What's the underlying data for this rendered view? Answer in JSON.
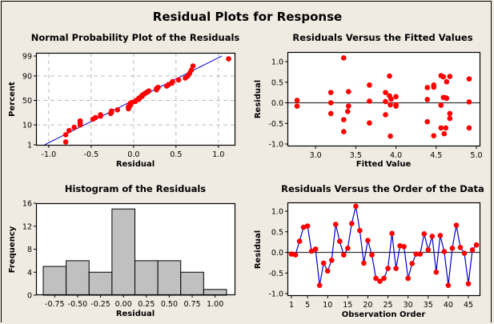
{
  "title": "Residual Plots for Response",
  "chart_data": [
    {
      "id": "normal",
      "type": "scatter",
      "title": "Normal Probability Plot of the Residuals",
      "xlabel": "Residual",
      "ylabel": "Percent",
      "xlim": [
        -1.15,
        1.2
      ],
      "ylim_percent": [
        1,
        99
      ],
      "xticks": [
        -1.0,
        -0.5,
        0.0,
        0.5,
        1.0
      ],
      "xtick_labels": [
        "-1.0",
        "-0.5",
        "0.0",
        "0.5",
        "1.0"
      ],
      "yticks": [
        1,
        10,
        50,
        90,
        99
      ],
      "ytick_labels": [
        "1",
        "10",
        "50",
        "90",
        "99"
      ],
      "grid": true,
      "fit_line": {
        "x_at_1pct": -1.05,
        "x_at_99pct": 1.04,
        "color": "#0000cc"
      },
      "point_color": "#ff0000",
      "residuals_sorted": [
        -0.8,
        -0.8,
        -0.76,
        -0.7,
        -0.63,
        -0.63,
        -0.63,
        -0.48,
        -0.45,
        -0.39,
        -0.39,
        -0.27,
        -0.26,
        -0.26,
        -0.19,
        -0.06,
        -0.06,
        -0.06,
        -0.04,
        -0.04,
        -0.04,
        -0.02,
        0.02,
        0.03,
        0.06,
        0.06,
        0.08,
        0.1,
        0.1,
        0.12,
        0.14,
        0.16,
        0.18,
        0.27,
        0.27,
        0.29,
        0.39,
        0.41,
        0.45,
        0.46,
        0.53,
        0.61,
        0.64,
        0.66,
        0.68,
        0.7,
        1.12
      ]
    },
    {
      "id": "fitted",
      "type": "scatter",
      "title": "Residuals Versus the Fitted Values",
      "xlabel": "Fitted Value",
      "ylabel": "Residual",
      "xlim": [
        2.65,
        5.05
      ],
      "ylim": [
        -1.05,
        1.25
      ],
      "xticks": [
        3.0,
        3.5,
        4.0,
        4.5,
        5.0
      ],
      "xtick_labels": [
        "3.0",
        "3.5",
        "4.0",
        "4.5",
        "5.0"
      ],
      "yticks": [
        -1.0,
        -0.5,
        0.0,
        0.5,
        1.0
      ],
      "ytick_labels": [
        "-1.0",
        "-0.5",
        "0.0",
        "0.5",
        "1.0"
      ],
      "reference_line": 0,
      "point_color": "#ff0000",
      "points": [
        [
          2.77,
          0.06
        ],
        [
          2.77,
          -0.08
        ],
        [
          3.19,
          0.25
        ],
        [
          3.19,
          0.0
        ],
        [
          3.19,
          -0.26
        ],
        [
          3.35,
          1.09
        ],
        [
          3.35,
          -0.41
        ],
        [
          3.35,
          -0.7
        ],
        [
          3.41,
          0.27
        ],
        [
          3.41,
          -0.08
        ],
        [
          3.4,
          -0.21
        ],
        [
          3.67,
          0.43
        ],
        [
          3.67,
          0.04
        ],
        [
          3.67,
          -0.49
        ],
        [
          3.87,
          0.25
        ],
        [
          3.87,
          0.03
        ],
        [
          3.87,
          -0.29
        ],
        [
          3.92,
          0.65
        ],
        [
          3.92,
          0.17
        ],
        [
          3.94,
          0.09
        ],
        [
          3.93,
          -0.05
        ],
        [
          3.93,
          -0.81
        ],
        [
          4.0,
          0.15
        ],
        [
          4.0,
          -0.05
        ],
        [
          4.0,
          -0.08
        ],
        [
          4.39,
          0.37
        ],
        [
          4.39,
          0.08
        ],
        [
          4.39,
          -0.46
        ],
        [
          4.47,
          0.43
        ],
        [
          4.47,
          0.38
        ],
        [
          4.47,
          -0.8
        ],
        [
          4.56,
          0.66
        ],
        [
          4.59,
          0.63
        ],
        [
          4.56,
          -0.06
        ],
        [
          4.56,
          -0.61
        ],
        [
          4.59,
          0.13
        ],
        [
          4.62,
          0.12
        ],
        [
          4.63,
          0.51
        ],
        [
          4.6,
          -0.75
        ],
        [
          4.62,
          -0.61
        ],
        [
          4.63,
          0.11
        ],
        [
          4.67,
          0.64
        ],
        [
          4.67,
          -0.26
        ],
        [
          4.67,
          -0.38
        ],
        [
          4.91,
          0.58
        ],
        [
          4.91,
          0.02
        ],
        [
          4.91,
          -0.61
        ]
      ]
    },
    {
      "id": "histogram",
      "type": "bar",
      "title": "Histogram of the Residuals",
      "xlabel": "Residual",
      "ylabel": "Frequency",
      "categories": [
        "-0.75",
        "-0.50",
        "-0.25",
        "0.00",
        "0.25",
        "0.50",
        "0.75",
        "1.00"
      ],
      "values": [
        5,
        6,
        4,
        15,
        6,
        6,
        4,
        1
      ],
      "ylim": [
        0,
        16
      ],
      "yticks": [
        0,
        4,
        8,
        12,
        16
      ],
      "bar_color": "#c0c0c0"
    },
    {
      "id": "order",
      "type": "line",
      "title": "Residuals Versus the Order of the Data",
      "xlabel": "Observation Order",
      "ylabel": "Residual",
      "xlim": [
        0,
        48
      ],
      "ylim": [
        -1.05,
        1.25
      ],
      "xticks": [
        1,
        5,
        10,
        15,
        20,
        25,
        30,
        35,
        40,
        45
      ],
      "xtick_labels": [
        "1",
        "5",
        "10",
        "15",
        "20",
        "25",
        "30",
        "35",
        "40",
        "45"
      ],
      "yticks": [
        -1.0,
        -0.5,
        0.0,
        0.5,
        1.0
      ],
      "ytick_labels": [
        "-1.0",
        "-0.5",
        "0.0",
        "0.5",
        "1.0"
      ],
      "reference_line": 0,
      "line_color": "#0000cc",
      "point_color": "#ff0000",
      "values": [
        -0.04,
        -0.06,
        0.27,
        0.61,
        0.64,
        0.03,
        0.08,
        -0.8,
        -0.26,
        -0.45,
        -0.19,
        0.68,
        0.27,
        -0.06,
        0.1,
        0.7,
        1.12,
        0.53,
        -0.26,
        0.29,
        -0.06,
        -0.63,
        -0.7,
        -0.63,
        -0.39,
        0.46,
        -0.39,
        0.16,
        0.14,
        -0.63,
        -0.27,
        -0.04,
        -0.04,
        0.45,
        0.06,
        0.39,
        -0.48,
        0.41,
        0.02,
        -0.8,
        0.1,
        0.66,
        0.12,
        -0.02,
        -0.76,
        0.06,
        0.18
      ]
    }
  ]
}
